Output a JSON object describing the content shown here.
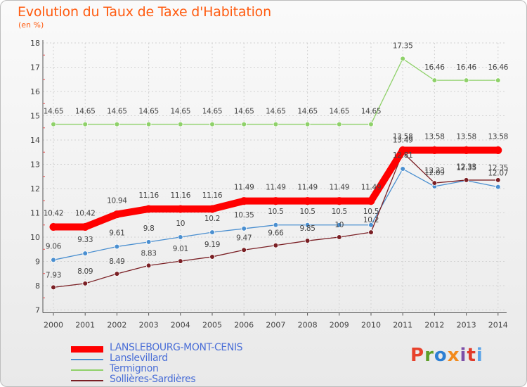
{
  "header": {
    "title": "Evolution du Taux de Taxe d'Habitation",
    "subtitle": "(en %)"
  },
  "logo": {
    "text": "Proxiti",
    "letters": [
      "P",
      "r",
      "o",
      "x",
      "i",
      "t",
      "i"
    ],
    "colors": [
      "#e8412b",
      "#5e9f2a",
      "#2d7fd3",
      "#f28a1c",
      "#7d4fa8",
      "#e13a2a",
      "#5aa3e8"
    ]
  },
  "chart_data": {
    "type": "line",
    "title": "Evolution du Taux de Taxe d'Habitation",
    "subtitle": "(en %)",
    "categories": [
      "2000",
      "2001",
      "2002",
      "2003",
      "2004",
      "2005",
      "2006",
      "2007",
      "2008",
      "2009",
      "2010",
      "2011",
      "2012",
      "2013",
      "2014"
    ],
    "ylim": [
      7,
      18
    ],
    "yticks": [
      "7",
      "8",
      "9",
      "10",
      "11",
      "12",
      "13",
      "14",
      "15",
      "16",
      "17",
      "18"
    ],
    "grid": true,
    "legend_position": "bottom-left",
    "series": [
      {
        "name": "LANSLEBOURG-MONT-CENIS",
        "color": "#ff0000",
        "values": [
          10.42,
          10.42,
          10.94,
          11.16,
          11.16,
          11.16,
          11.49,
          11.49,
          11.49,
          11.49,
          11.49,
          13.58,
          13.58,
          13.58,
          13.58
        ],
        "labels": [
          "10.42",
          "10.42",
          "10.94",
          "11.16",
          "11.16",
          "11.16",
          "11.49",
          "11.49",
          "11.49",
          "11.49",
          "11.49",
          "13.58",
          "13.58",
          "13.58",
          "13.58"
        ]
      },
      {
        "name": "Lanslevillard",
        "color": "#4a8fd0",
        "values": [
          9.06,
          9.33,
          9.61,
          9.8,
          10,
          10.2,
          10.35,
          10.5,
          10.5,
          10.5,
          10.5,
          12.81,
          12.09,
          12.33,
          12.07
        ],
        "labels": [
          "9.06",
          "9.33",
          "9.61",
          "9.8",
          "10",
          "10.2",
          "10.35",
          "10.5",
          "10.5",
          "10.5",
          "10.5",
          "12.81",
          "12.09",
          "12.33",
          "12.07"
        ]
      },
      {
        "name": "Termignon",
        "color": "#8fd16a",
        "values": [
          14.65,
          14.65,
          14.65,
          14.65,
          14.65,
          14.65,
          14.65,
          14.65,
          14.65,
          14.65,
          14.65,
          17.35,
          16.46,
          16.46,
          16.46
        ],
        "labels": [
          "14.65",
          "14.65",
          "14.65",
          "14.65",
          "14.65",
          "14.65",
          "14.65",
          "14.65",
          "14.65",
          "14.65",
          "14.65",
          "17.35",
          "16.46",
          "16.46",
          "16.46"
        ]
      },
      {
        "name": "Sollières-Sardières",
        "color": "#7a1f24",
        "values": [
          7.93,
          8.09,
          8.49,
          8.83,
          9.01,
          9.19,
          9.47,
          9.66,
          9.85,
          10,
          10.2,
          13.49,
          12.23,
          12.35,
          12.35
        ],
        "labels": [
          "7.93",
          "8.09",
          "8.49",
          "8.83",
          "9.01",
          "9.19",
          "9.47",
          "9.66",
          "9.85",
          "10",
          "10.2",
          "13.49",
          "12.23",
          "12.35",
          "12.35"
        ]
      }
    ]
  }
}
